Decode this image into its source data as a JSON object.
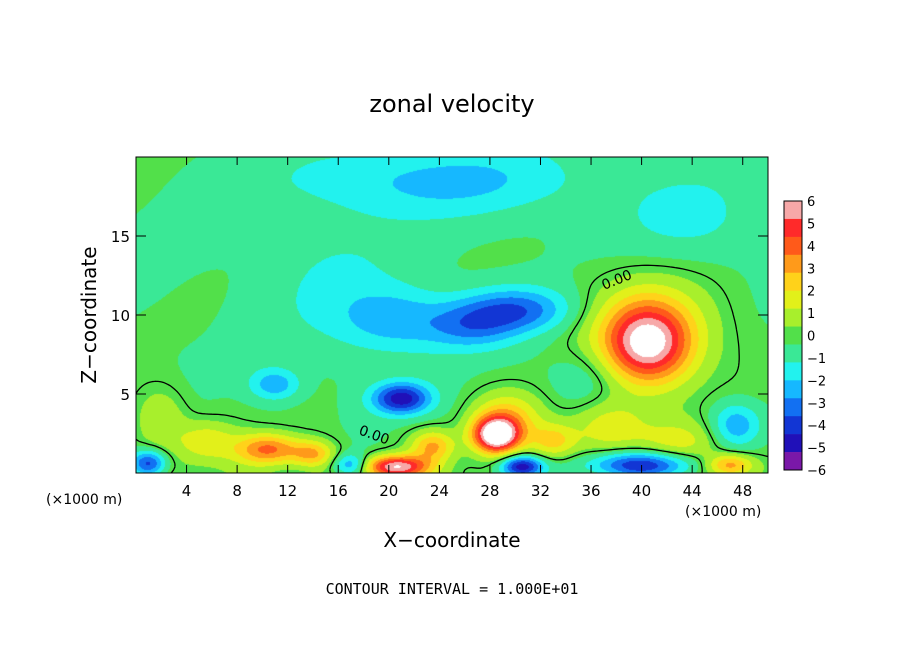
{
  "chart_data": {
    "type": "heatmap",
    "title": "zonal velocity",
    "xlabel": "X−coordinate",
    "ylabel": "Z−coordinate",
    "x_unit": "(×1000 m)",
    "y_unit": "(×1000 m)",
    "footer": "CONTOUR INTERVAL = 1.000E+01",
    "xlim": [
      0,
      50
    ],
    "ylim": [
      0,
      20
    ],
    "x_ticks": [
      4,
      8,
      12,
      16,
      20,
      24,
      28,
      32,
      36,
      40,
      44,
      48
    ],
    "y_ticks": [
      5,
      10,
      15
    ],
    "contour_label": "0.00",
    "colorbar": {
      "min": -6,
      "max": 6,
      "labels": [
        "6",
        "5",
        "4",
        "3",
        "2",
        "1",
        "0",
        "−1",
        "−2",
        "−3",
        "−4",
        "−5",
        "−6"
      ],
      "colors": [
        "#f7a8a8",
        "#ff2a2a",
        "#ff5a1a",
        "#ff9a1a",
        "#ffd21a",
        "#e2f01a",
        "#a8ef2c",
        "#52e04a",
        "#3ae896",
        "#22f2ee",
        "#16b8ff",
        "#1270f2",
        "#1236d4",
        "#2010b8",
        "#7a18a8"
      ]
    },
    "features": [
      {
        "x": 40.5,
        "z": 8.2,
        "v": 5.0,
        "sx": 2.3,
        "sz": 1.7
      },
      {
        "x": 40.5,
        "z": 8.8,
        "v": 2.5,
        "sx": 4.0,
        "sz": 2.6
      },
      {
        "x": 28.5,
        "z": 2.4,
        "v": 7.0,
        "sx": 1.3,
        "sz": 0.8
      },
      {
        "x": 29.5,
        "z": 3.5,
        "v": 2.5,
        "sx": 2.0,
        "sz": 1.2
      },
      {
        "x": 10.5,
        "z": 1.5,
        "v": 4.0,
        "sx": 1.8,
        "sz": 0.7
      },
      {
        "x": 14.0,
        "z": 1.2,
        "v": 2.8,
        "sx": 1.2,
        "sz": 0.6
      },
      {
        "x": 20.5,
        "z": 0.4,
        "v": 6.0,
        "sx": 1.8,
        "sz": 0.5
      },
      {
        "x": 23.5,
        "z": 1.7,
        "v": 3.0,
        "sx": 1.2,
        "sz": 0.7
      },
      {
        "x": 33.0,
        "z": 2.0,
        "v": 2.5,
        "sx": 1.3,
        "sz": 0.8
      },
      {
        "x": 37.5,
        "z": 3.0,
        "v": 2.0,
        "sx": 2.2,
        "sz": 1.2
      },
      {
        "x": 5.5,
        "z": 2.0,
        "v": 2.0,
        "sx": 1.6,
        "sz": 0.9
      },
      {
        "x": 2.0,
        "z": 3.5,
        "v": 1.5,
        "sx": 1.5,
        "sz": 1.5
      },
      {
        "x": 47.0,
        "z": 0.5,
        "v": 3.5,
        "sx": 1.3,
        "sz": 0.5
      },
      {
        "x": 43.0,
        "z": 2.0,
        "v": 1.5,
        "sx": 2.5,
        "sz": 1.0
      },
      {
        "x": 30.0,
        "z": 10.3,
        "v": -3.0,
        "sx": 3.2,
        "sz": 1.0
      },
      {
        "x": 26.5,
        "z": 9.2,
        "v": -2.0,
        "sx": 2.5,
        "sz": 1.0
      },
      {
        "x": 21.0,
        "z": 4.7,
        "v": -4.5,
        "sx": 1.6,
        "sz": 0.7
      },
      {
        "x": 20.5,
        "z": 9.7,
        "v": -2.0,
        "sx": 3.0,
        "sz": 1.4
      },
      {
        "x": 11.0,
        "z": 5.6,
        "v": -2.2,
        "sx": 1.4,
        "sz": 0.7
      },
      {
        "x": 24.0,
        "z": 18.5,
        "v": -1.8,
        "sx": 8.0,
        "sz": 1.6
      },
      {
        "x": 30.5,
        "z": 0.4,
        "v": -5.0,
        "sx": 1.2,
        "sz": 0.5
      },
      {
        "x": 40.0,
        "z": 0.5,
        "v": -4.5,
        "sx": 3.0,
        "sz": 0.6
      },
      {
        "x": 1.0,
        "z": 0.6,
        "v": -4.0,
        "sx": 1.0,
        "sz": 0.6
      },
      {
        "x": 17.0,
        "z": 0.5,
        "v": -3.0,
        "sx": 1.0,
        "sz": 0.5
      },
      {
        "x": 47.5,
        "z": 3.0,
        "v": -2.5,
        "sx": 1.4,
        "sz": 1.0
      },
      {
        "x": 35.5,
        "z": 6.0,
        "v": -1.2,
        "sx": 2.0,
        "sz": 1.5
      },
      {
        "x": 15.5,
        "z": 12.0,
        "v": -0.8,
        "sx": 4.0,
        "sz": 3.0
      },
      {
        "x": 44.0,
        "z": 16.0,
        "v": -1.0,
        "sx": 4.0,
        "sz": 2.0
      }
    ]
  }
}
